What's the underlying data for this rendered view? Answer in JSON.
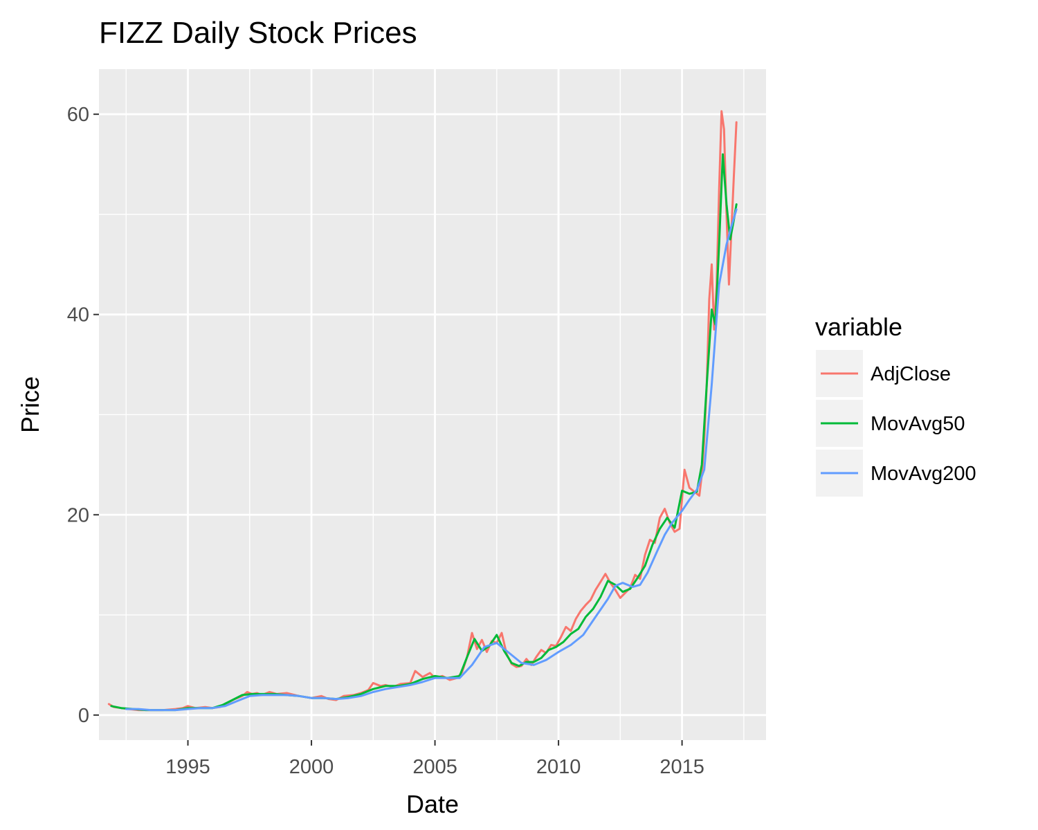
{
  "chart_data": {
    "type": "line",
    "title": "FIZZ Daily Stock Prices",
    "xlabel": "Date",
    "ylabel": "Price",
    "xlim": [
      1991.4,
      2018.4
    ],
    "ylim": [
      -2.5,
      64.5
    ],
    "x_ticks": [
      1995,
      2000,
      2005,
      2010,
      2015
    ],
    "x_tick_labels": [
      "1995",
      "2000",
      "2005",
      "2010",
      "2015"
    ],
    "y_ticks": [
      0,
      20,
      40,
      60
    ],
    "y_tick_labels": [
      "0",
      "20",
      "40",
      "60"
    ],
    "grid": true,
    "legend": {
      "title": "variable",
      "position": "right"
    },
    "series": [
      {
        "name": "AdjClose",
        "color": "#F8766D",
        "x": [
          1991.8,
          1992.0,
          1992.3,
          1992.6,
          1993.0,
          1993.5,
          1994.0,
          1994.5,
          1994.8,
          1995.0,
          1995.3,
          1995.7,
          1996.0,
          1996.3,
          1996.6,
          1996.9,
          1997.2,
          1997.4,
          1997.6,
          1997.8,
          1998.0,
          1998.3,
          1998.6,
          1999.0,
          1999.5,
          2000.0,
          2000.4,
          2000.7,
          2001.0,
          2001.3,
          2001.7,
          2002.0,
          2002.3,
          2002.5,
          2002.8,
          2003.0,
          2003.3,
          2003.6,
          2004.0,
          2004.2,
          2004.5,
          2004.8,
          2005.0,
          2005.3,
          2005.6,
          2005.9,
          2006.1,
          2006.3,
          2006.5,
          2006.7,
          2006.9,
          2007.1,
          2007.3,
          2007.5,
          2007.7,
          2007.9,
          2008.1,
          2008.3,
          2008.5,
          2008.7,
          2008.9,
          2009.1,
          2009.3,
          2009.5,
          2009.7,
          2009.9,
          2010.1,
          2010.3,
          2010.5,
          2010.7,
          2010.9,
          2011.1,
          2011.3,
          2011.5,
          2011.7,
          2011.9,
          2012.1,
          2012.3,
          2012.5,
          2012.7,
          2012.9,
          2013.1,
          2013.3,
          2013.5,
          2013.7,
          2013.9,
          2014.1,
          2014.3,
          2014.5,
          2014.7,
          2014.9,
          2015.1,
          2015.3,
          2015.5,
          2015.7,
          2015.8,
          2015.9,
          2016.0,
          2016.1,
          2016.2,
          2016.3,
          2016.4,
          2016.5,
          2016.6,
          2016.7,
          2016.8,
          2016.9,
          2017.0,
          2017.1,
          2017.2
        ],
        "y": [
          1.1,
          0.8,
          0.7,
          0.6,
          0.5,
          0.5,
          0.5,
          0.6,
          0.7,
          0.9,
          0.7,
          0.8,
          0.7,
          0.8,
          1.2,
          1.6,
          1.9,
          2.3,
          2.1,
          2.2,
          2.0,
          2.3,
          2.1,
          2.2,
          1.9,
          1.7,
          1.9,
          1.6,
          1.5,
          1.9,
          2.0,
          2.2,
          2.5,
          3.2,
          2.9,
          3.0,
          2.8,
          3.1,
          3.2,
          4.4,
          3.8,
          4.2,
          3.7,
          3.9,
          3.5,
          3.7,
          4.3,
          5.8,
          8.2,
          6.6,
          7.5,
          6.3,
          7.4,
          7.2,
          8.2,
          6.1,
          5.1,
          4.8,
          4.9,
          5.6,
          5.0,
          5.8,
          6.5,
          6.2,
          7.0,
          6.9,
          7.8,
          8.8,
          8.4,
          9.6,
          10.4,
          11.0,
          11.5,
          12.5,
          13.3,
          14.1,
          13.2,
          12.5,
          11.7,
          12.2,
          12.7,
          14.0,
          13.6,
          16.0,
          17.5,
          17.2,
          19.7,
          20.6,
          19.2,
          18.3,
          18.6,
          24.5,
          22.7,
          22.3,
          21.9,
          24.0,
          27.5,
          33.0,
          41.5,
          45.0,
          38.5,
          43.0,
          52.5,
          60.3,
          58.5,
          50.0,
          43.0,
          48.5,
          54.0,
          59.2
        ]
      },
      {
        "name": "MovAvg50",
        "color": "#00BA38",
        "x": [
          1991.9,
          1992.3,
          1992.8,
          1993.3,
          1994.0,
          1994.5,
          1995.0,
          1995.5,
          1996.0,
          1996.4,
          1996.8,
          1997.2,
          1997.6,
          1998.0,
          1998.5,
          1999.0,
          1999.5,
          2000.0,
          2000.5,
          2001.0,
          2001.5,
          2002.0,
          2002.5,
          2003.0,
          2003.5,
          2004.0,
          2004.5,
          2005.0,
          2005.5,
          2006.0,
          2006.3,
          2006.6,
          2006.9,
          2007.2,
          2007.5,
          2007.8,
          2008.1,
          2008.4,
          2008.7,
          2009.0,
          2009.3,
          2009.6,
          2009.9,
          2010.2,
          2010.5,
          2010.8,
          2011.1,
          2011.4,
          2011.7,
          2012.0,
          2012.3,
          2012.6,
          2012.9,
          2013.2,
          2013.5,
          2013.8,
          2014.1,
          2014.4,
          2014.7,
          2015.0,
          2015.3,
          2015.6,
          2015.8,
          2016.0,
          2016.2,
          2016.35,
          2016.5,
          2016.65,
          2016.8,
          2016.95,
          2017.1,
          2017.2
        ],
        "y": [
          0.9,
          0.7,
          0.6,
          0.5,
          0.5,
          0.5,
          0.7,
          0.7,
          0.7,
          1.0,
          1.5,
          2.0,
          2.1,
          2.1,
          2.1,
          2.0,
          1.9,
          1.7,
          1.7,
          1.6,
          1.8,
          2.1,
          2.6,
          2.9,
          2.9,
          3.1,
          3.6,
          3.9,
          3.7,
          3.9,
          5.8,
          7.6,
          6.4,
          6.9,
          8.0,
          6.4,
          5.2,
          4.9,
          5.3,
          5.3,
          5.7,
          6.5,
          6.8,
          7.3,
          8.1,
          8.6,
          9.8,
          10.6,
          11.8,
          13.4,
          13.0,
          12.3,
          12.6,
          13.7,
          14.9,
          17.0,
          18.6,
          19.7,
          18.7,
          22.4,
          22.1,
          22.3,
          25.0,
          33.0,
          40.5,
          39.0,
          47.0,
          56.0,
          51.0,
          47.5,
          49.5,
          51.0
        ]
      },
      {
        "name": "MovAvg200",
        "color": "#619CFF",
        "x": [
          1992.5,
          1993.0,
          1993.5,
          1994.0,
          1994.5,
          1995.0,
          1995.5,
          1996.0,
          1996.5,
          1997.0,
          1997.5,
          1998.0,
          1998.5,
          1999.0,
          1999.5,
          2000.0,
          2000.5,
          2001.0,
          2001.5,
          2002.0,
          2002.5,
          2003.0,
          2003.5,
          2004.0,
          2004.5,
          2005.0,
          2005.5,
          2006.0,
          2006.5,
          2007.0,
          2007.5,
          2008.0,
          2008.5,
          2009.0,
          2009.5,
          2010.0,
          2010.5,
          2011.0,
          2011.5,
          2012.0,
          2012.3,
          2012.6,
          2013.0,
          2013.3,
          2013.6,
          2014.0,
          2014.3,
          2014.6,
          2015.0,
          2015.3,
          2015.6,
          2015.9,
          2016.2,
          2016.5,
          2016.8,
          2017.0,
          2017.2
        ],
        "y": [
          0.6,
          0.6,
          0.5,
          0.5,
          0.5,
          0.6,
          0.7,
          0.7,
          0.9,
          1.4,
          1.9,
          2.0,
          2.0,
          2.0,
          1.9,
          1.7,
          1.7,
          1.6,
          1.7,
          1.9,
          2.3,
          2.6,
          2.8,
          3.0,
          3.3,
          3.7,
          3.7,
          3.7,
          5.0,
          6.8,
          7.2,
          6.2,
          5.2,
          5.0,
          5.5,
          6.3,
          7.0,
          8.0,
          9.8,
          11.6,
          12.9,
          13.2,
          12.8,
          13.0,
          14.2,
          16.4,
          18.0,
          19.2,
          20.4,
          21.5,
          22.5,
          24.5,
          33.0,
          43.0,
          47.0,
          48.8,
          50.5
        ]
      }
    ]
  }
}
